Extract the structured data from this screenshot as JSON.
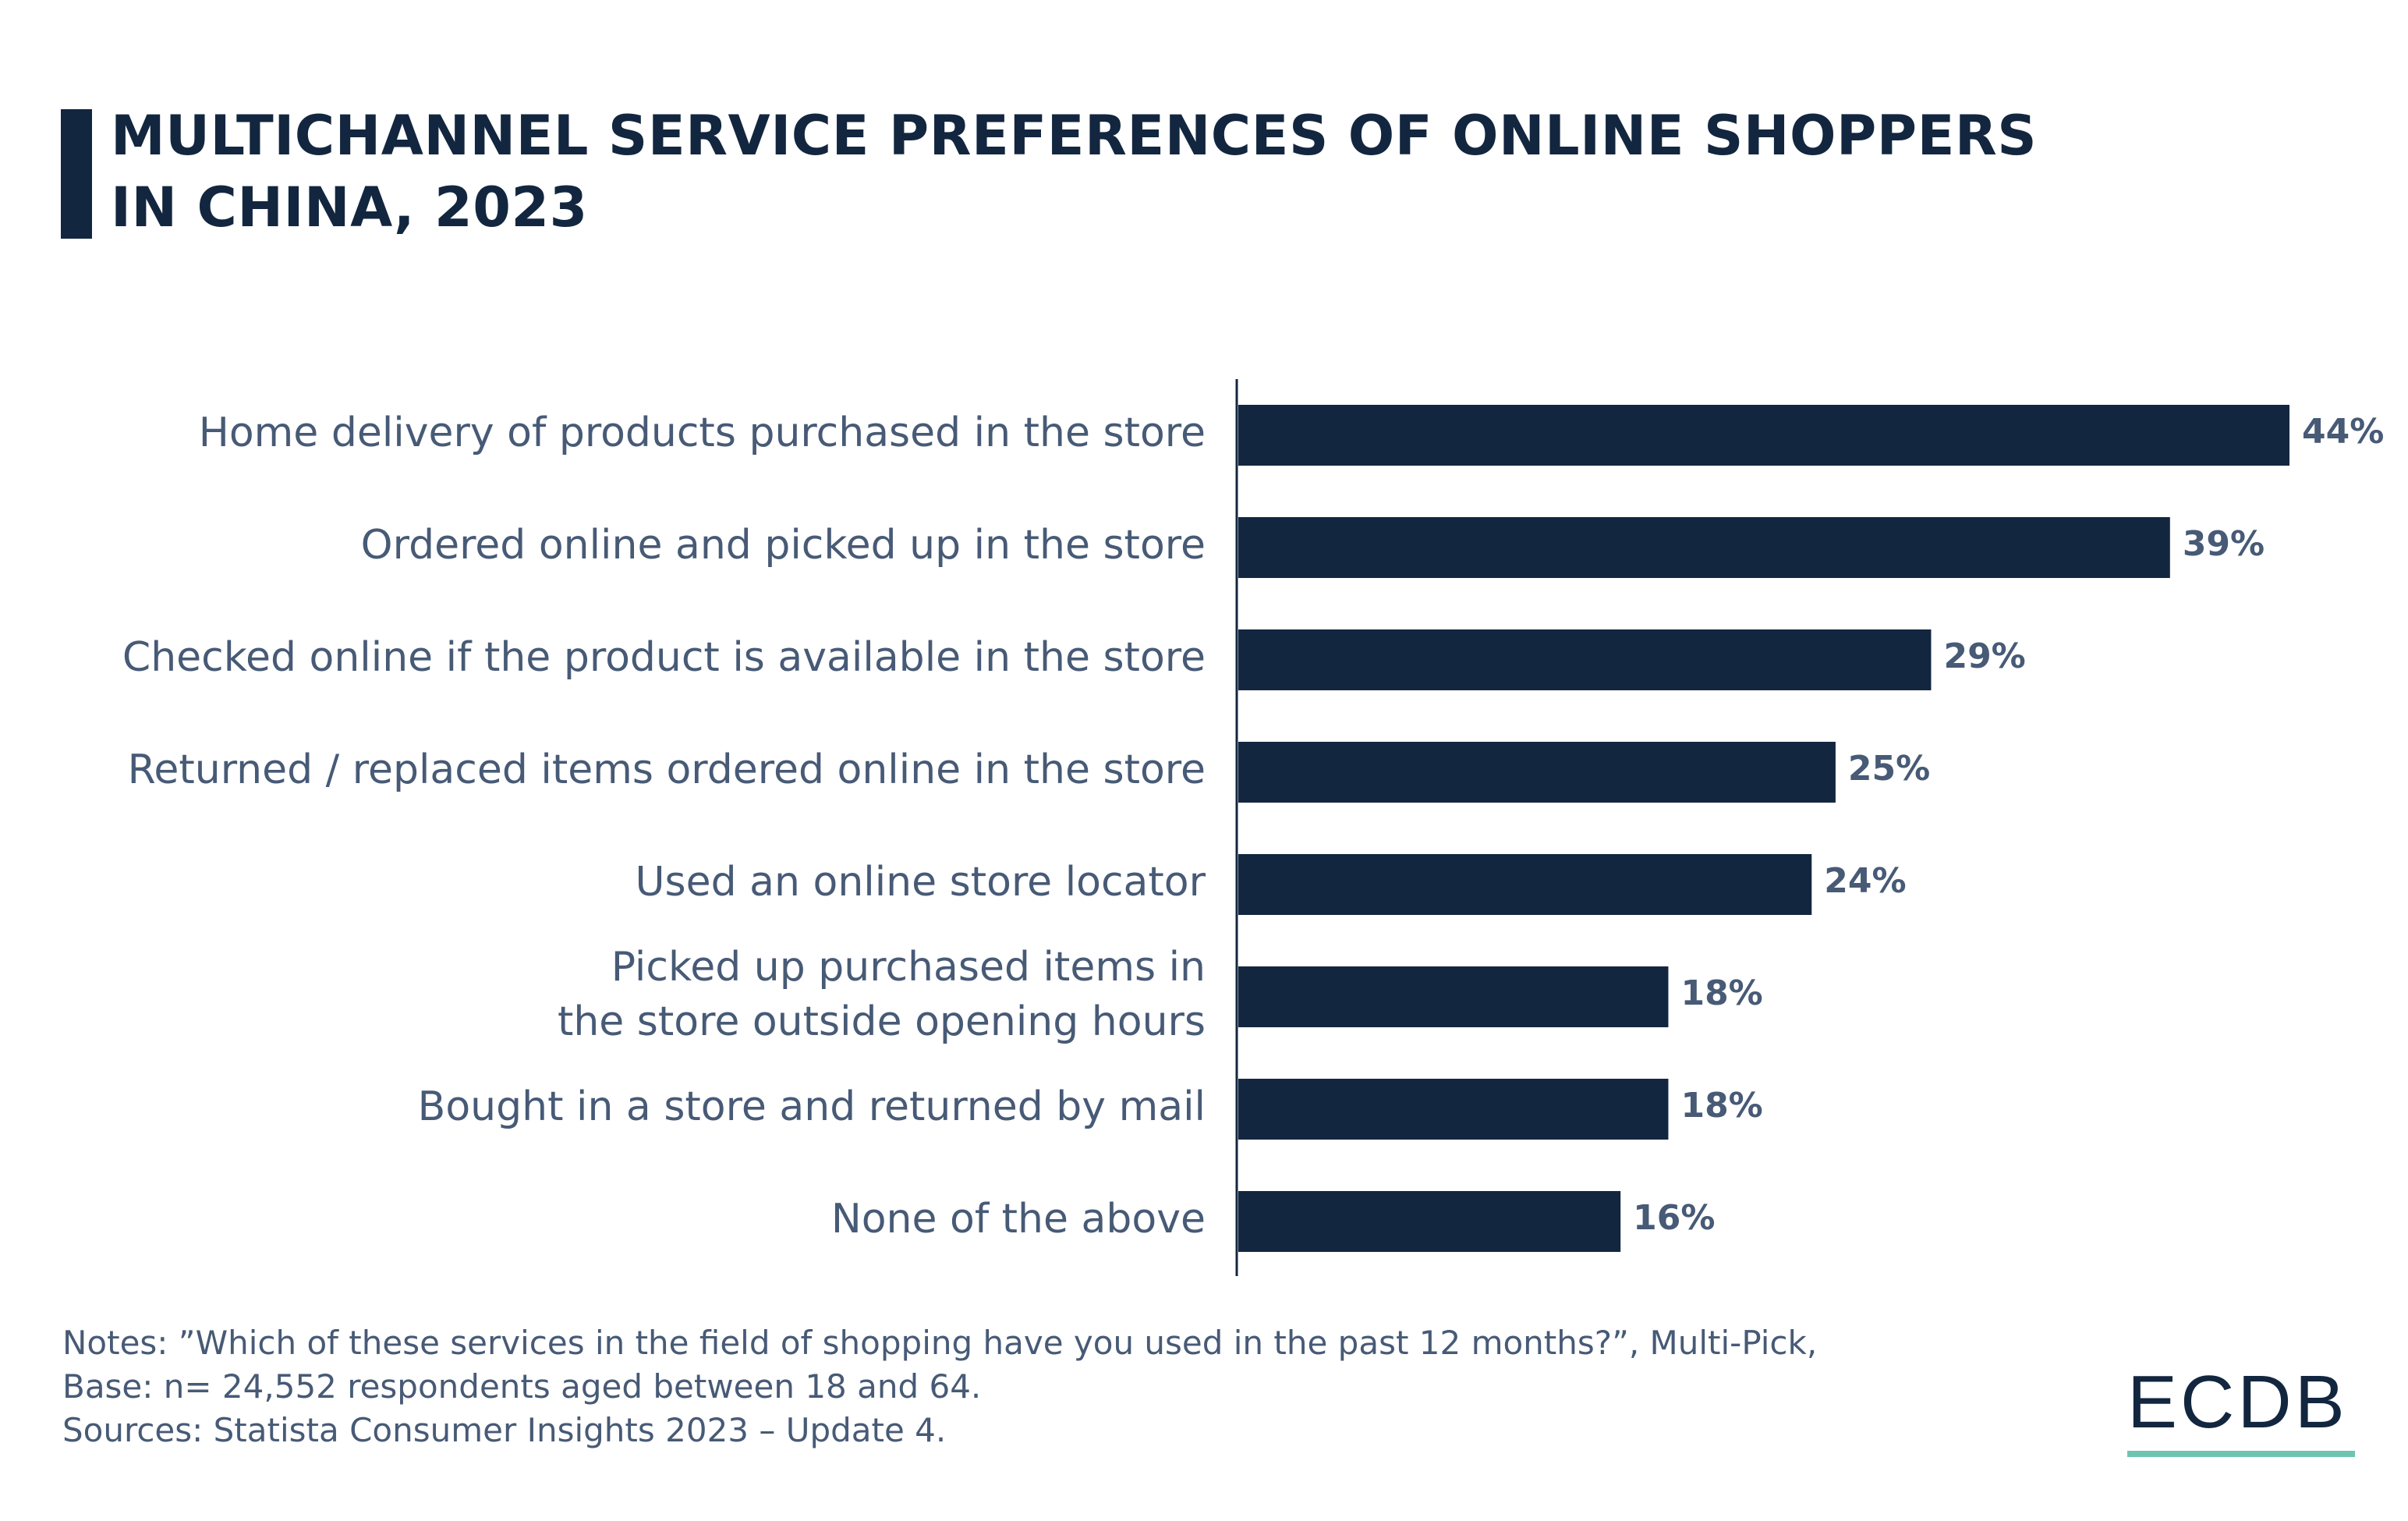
{
  "title_lines": [
    "MULTICHANNEL SERVICE PREFERENCES OF ONLINE SHOPPERS",
    "IN CHINA, 2023"
  ],
  "chart_data": {
    "type": "bar",
    "orientation": "horizontal",
    "title": "MULTICHANNEL SERVICE PREFERENCES OF ONLINE SHOPPERS IN CHINA, 2023",
    "categories": [
      [
        "Home delivery of products purchased in the store"
      ],
      [
        "Ordered online and picked up in the store"
      ],
      [
        "Checked online if the product is available in the store"
      ],
      [
        "Returned / replaced items ordered online in the store"
      ],
      [
        "Used an online store locator"
      ],
      [
        "Picked up purchased items in",
        "the store outside opening hours"
      ],
      [
        "Bought in a store and returned by mail"
      ],
      [
        "None of the above"
      ]
    ],
    "values": [
      44,
      39,
      29,
      25,
      24,
      18,
      18,
      16
    ],
    "value_labels": [
      "44%",
      "39%",
      "29%",
      "25%",
      "24%",
      "18%",
      "18%",
      "16%"
    ],
    "unit": "%",
    "xlim": [
      0,
      44
    ],
    "grid": false,
    "bar_color": "#13263f"
  },
  "notes": [
    "Notes: ”Which of these services in the field of shopping have you used in the past 12 months?”, Multi-Pick,",
    "Base: n= 24,552 respondents aged between 18 and 64.",
    "Sources: Statista Consumer Insights 2023 – Update 4."
  ],
  "logo": {
    "text": "ECDB",
    "accent": "#6fc4b1"
  }
}
